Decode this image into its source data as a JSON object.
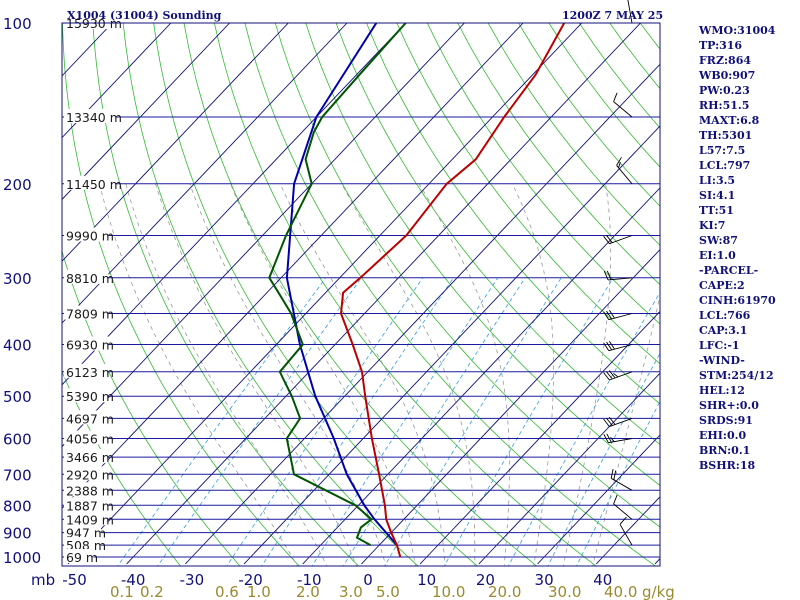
{
  "header": {
    "left_title": "X1004 (31004) Sounding",
    "right_title": "1200Z  7 MAY 25"
  },
  "stats": [
    "WMO:31004",
    "TP:316",
    "FRZ:864",
    "WB0:907",
    "PW:0.23",
    "RH:51.5",
    "MAXT:6.8",
    "TH:5301",
    "L57:7.5",
    "LCL:797",
    "LI:3.5",
    "SI:4.1",
    "TT:51",
    "KI:7",
    "SW:87",
    "EI:1.0",
    "-PARCEL-",
    "CAPE:2",
    "CINH:61970",
    "LCL:766",
    "CAP:3.1",
    "LFC:-1",
    "-WIND-",
    "STM:254/12",
    "HEL:12",
    "SHR+:0.0",
    "SRDS:91",
    "EHI:0.0",
    "BRN:0.1",
    "BSHR:18"
  ],
  "colors": {
    "frame": "#10107a",
    "isobar": "#1a1aa0",
    "isotherm": "#10107a",
    "dry_adiabat": "#33bb33",
    "mixing_ratio": "#33a0dd",
    "moist_adiabat": "#999999",
    "temperature": "#bb0000",
    "dewpoint": "#005500",
    "parcel": "#0000aa",
    "wind": "#000000",
    "axis_text": "#10107a",
    "mixing_text": "#9a8a30"
  },
  "chart_data": {
    "type": "skew-t",
    "pressure_ticks": [
      {
        "p": 100,
        "label": "100"
      },
      {
        "p": 200,
        "label": "200"
      },
      {
        "p": 300,
        "label": "300"
      },
      {
        "p": 400,
        "label": "400"
      },
      {
        "p": 500,
        "label": "500"
      },
      {
        "p": 600,
        "label": "600"
      },
      {
        "p": 700,
        "label": "700"
      },
      {
        "p": 800,
        "label": "800"
      },
      {
        "p": 900,
        "label": "900"
      },
      {
        "p": 1000,
        "label": "1000"
      }
    ],
    "height_labels": [
      {
        "p": 100,
        "label": "15930 m"
      },
      {
        "p": 150,
        "label": "13340 m"
      },
      {
        "p": 200,
        "label": "11450 m"
      },
      {
        "p": 250,
        "label": "9990 m"
      },
      {
        "p": 300,
        "label": "8810 m"
      },
      {
        "p": 350,
        "label": "7809 m"
      },
      {
        "p": 400,
        "label": "6930 m"
      },
      {
        "p": 450,
        "label": "6123 m"
      },
      {
        "p": 500,
        "label": "5390 m"
      },
      {
        "p": 550,
        "label": "4697 m"
      },
      {
        "p": 600,
        "label": "4056 m"
      },
      {
        "p": 650,
        "label": "3466 m"
      },
      {
        "p": 700,
        "label": "2920 m"
      },
      {
        "p": 750,
        "label": "2388 m"
      },
      {
        "p": 800,
        "label": "1887 m"
      },
      {
        "p": 850,
        "label": "1409 m"
      },
      {
        "p": 900,
        "label": "947 m"
      },
      {
        "p": 950,
        "label": "508 m"
      },
      {
        "p": 1000,
        "label": "69 m"
      }
    ],
    "pressure_unit": "mb",
    "temperature_ticks": [
      "-50",
      "-40",
      "-30",
      "-20",
      "-10",
      "0",
      "10",
      "20",
      "30",
      "40"
    ],
    "temperature_values": [
      -50,
      -40,
      -30,
      -20,
      -10,
      0,
      10,
      20,
      30,
      40
    ],
    "mixing_ratio_labels": [
      "0.1",
      "0.2",
      "0.6",
      "1.0",
      "2.0",
      "3.0",
      "5.0",
      "10.0",
      "20.0",
      "30.0",
      "40.0"
    ],
    "mixing_ratio_values": [
      0.1,
      0.2,
      0.6,
      1.0,
      2.0,
      3.0,
      5.0,
      10.0,
      20.0,
      30.0,
      40.0
    ],
    "mixing_ratio_unit": "g/kg",
    "temperature": [
      [
        1000,
        5.5
      ],
      [
        950,
        3.0
      ],
      [
        900,
        0.0
      ],
      [
        850,
        -3.0
      ],
      [
        800,
        -5.5
      ],
      [
        700,
        -11.5
      ],
      [
        600,
        -18.5
      ],
      [
        500,
        -26.5
      ],
      [
        450,
        -31.0
      ],
      [
        400,
        -37.0
      ],
      [
        350,
        -44.0
      ],
      [
        320,
        -47.0
      ],
      [
        300,
        -46.5
      ],
      [
        250,
        -45.5
      ],
      [
        200,
        -47.0
      ],
      [
        180,
        -46.0
      ],
      [
        150,
        -48.0
      ],
      [
        125,
        -49.5
      ],
      [
        100,
        -53.0
      ]
    ],
    "dewpoint": [
      [
        950,
        -1.5
      ],
      [
        920,
        -5.0
      ],
      [
        880,
        -6.0
      ],
      [
        850,
        -5.5
      ],
      [
        800,
        -10.5
      ],
      [
        700,
        -26.0
      ],
      [
        600,
        -33.0
      ],
      [
        550,
        -34.0
      ],
      [
        500,
        -39.0
      ],
      [
        450,
        -45.0
      ],
      [
        400,
        -45.5
      ],
      [
        350,
        -52.5
      ],
      [
        320,
        -58.0
      ],
      [
        300,
        -62.0
      ],
      [
        250,
        -66.0
      ],
      [
        200,
        -70.0
      ],
      [
        180,
        -75.0
      ],
      [
        160,
        -78.0
      ],
      [
        150,
        -79.0
      ],
      [
        125,
        -79.5
      ],
      [
        100,
        -80.0
      ]
    ],
    "parcel_path": [
      [
        950,
        3.0
      ],
      [
        850,
        -5.0
      ],
      [
        800,
        -9.0
      ],
      [
        700,
        -17.0
      ],
      [
        600,
        -25.0
      ],
      [
        500,
        -35.0
      ],
      [
        400,
        -46.0
      ],
      [
        300,
        -59.0
      ],
      [
        200,
        -73.0
      ],
      [
        150,
        -80.0
      ],
      [
        100,
        -85.0
      ]
    ],
    "wind_barbs": [
      {
        "p": 950,
        "dir": 330,
        "spd": 10
      },
      {
        "p": 850,
        "dir": 310,
        "spd": 12
      },
      {
        "p": 750,
        "dir": 300,
        "spd": 20
      },
      {
        "p": 600,
        "dir": 260,
        "spd": 25
      },
      {
        "p": 550,
        "dir": 250,
        "spd": 30
      },
      {
        "p": 450,
        "dir": 250,
        "spd": 35
      },
      {
        "p": 400,
        "dir": 255,
        "spd": 30
      },
      {
        "p": 350,
        "dir": 255,
        "spd": 30
      },
      {
        "p": 300,
        "dir": 265,
        "spd": 20
      },
      {
        "p": 250,
        "dir": 250,
        "spd": 20
      },
      {
        "p": 200,
        "dir": 320,
        "spd": 15
      },
      {
        "p": 150,
        "dir": 310,
        "spd": 10
      },
      {
        "p": 100,
        "dir": 350,
        "spd": 5
      }
    ]
  }
}
